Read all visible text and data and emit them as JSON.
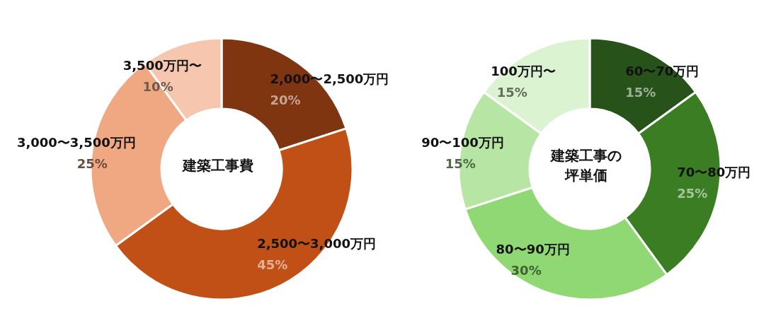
{
  "chart_data": [
    {
      "type": "donut",
      "title": "建築工事費",
      "categories": [
        "2,000〜2,500万円",
        "2,500〜3,000万円",
        "3,000〜3,500万円",
        "3,500万円〜"
      ],
      "values": [
        20,
        45,
        25,
        10
      ],
      "value_labels": [
        "20%",
        "45%",
        "25%",
        "10%"
      ],
      "colors": [
        "#7f3510",
        "#c05016",
        "#f0a882",
        "#f6c7ae"
      ],
      "legend": false
    },
    {
      "type": "donut",
      "title": "建築工事の坪単価",
      "categories": [
        "60〜70万円",
        "70〜80万円",
        "80〜90万円",
        "90〜100万円",
        "100万円〜"
      ],
      "values": [
        15,
        25,
        30,
        15,
        15
      ],
      "value_labels": [
        "15%",
        "25%",
        "30%",
        "15%",
        "15%"
      ],
      "colors": [
        "#275219",
        "#3b7d22",
        "#8fd873",
        "#b7e5a3",
        "#dcf3d2"
      ],
      "legend": false
    }
  ]
}
